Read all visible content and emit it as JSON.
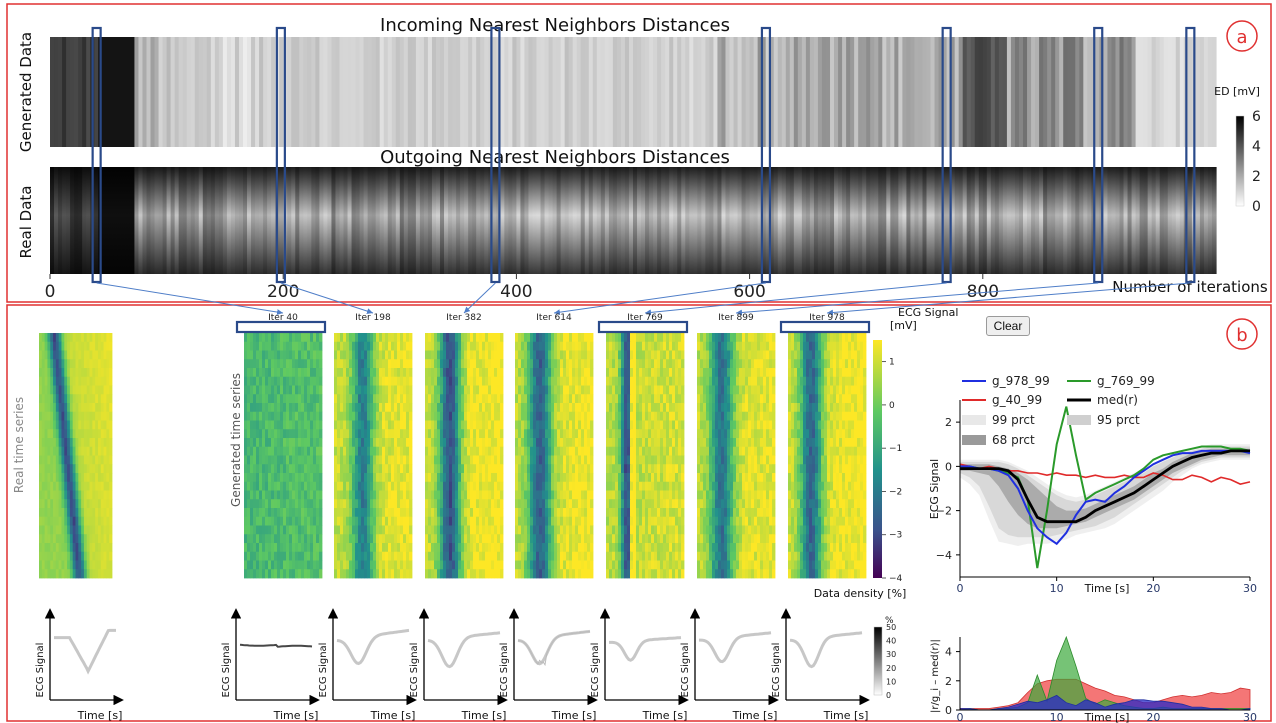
{
  "panel_a": {
    "label": "a",
    "title_top": "Incoming Nearest Neighbors Distances",
    "title_bottom": "Outgoing Nearest Neighbors Distances",
    "ylabel_top": "Generated Data",
    "ylabel_bottom": "Real Data",
    "xlabel": "Number of iterations",
    "colorbar_label": "ED [mV]"
  },
  "panel_b": {
    "label": "b",
    "clear_label": "Clear",
    "real_ylabel": "Real time series",
    "generated_ylabel": "Generated time series",
    "heatmap_colorbar_label": "ECG Signal\n[mV]",
    "density_label": "Data density [%]",
    "density_unit": "%",
    "ecg_signal_label": "ECG Signal",
    "time_label": "Time [s]",
    "deviation_ylabel": "|r/g_i – med(r)|"
  },
  "colors": {
    "frame": "#e03030",
    "highlight_box": "#2a4a8a",
    "arrow": "#4f7ec8",
    "series_978": "#1f2fe0",
    "series_769": "#2a9a2a",
    "series_40": "#e02a2a",
    "median": "#000000"
  },
  "chart_data": [
    {
      "type": "heatmap",
      "name": "incoming-nn-distances",
      "title": "Incoming Nearest Neighbors Distances",
      "ylabel": "Generated Data",
      "xlabel": "Number of iterations",
      "xlim": [
        0,
        1000
      ],
      "xticks": [
        0,
        200,
        400,
        600,
        800
      ],
      "colorbar": {
        "label": "ED [mV]",
        "range": [
          0,
          6
        ],
        "ticks": [
          0,
          2,
          4,
          6
        ]
      },
      "highlighted_iterations": [
        40,
        198,
        382,
        614,
        769,
        899,
        978
      ]
    },
    {
      "type": "heatmap",
      "name": "outgoing-nn-distances",
      "title": "Outgoing Nearest Neighbors Distances",
      "ylabel": "Real Data",
      "xlabel": "Number of iterations",
      "xlim": [
        0,
        1000
      ],
      "xticks": [
        0,
        200,
        400,
        600,
        800
      ]
    },
    {
      "type": "heatmap",
      "name": "time-series-heatmaps",
      "panels": [
        "Iter 40",
        "Iter 198",
        "Iter 382",
        "Iter 614",
        "Iter 769",
        "Iter 899",
        "Iter 978"
      ],
      "highlighted_panels": [
        "Iter 40",
        "Iter 769",
        "Iter 978"
      ],
      "colorbar": {
        "label": "ECG Signal [mV]",
        "range": [
          -4,
          1.5
        ],
        "ticks": [
          1,
          0,
          -1,
          -2,
          -3,
          -4
        ]
      }
    },
    {
      "type": "line",
      "name": "ecg-signal-comparison",
      "xlabel": "Time [s]",
      "ylabel": "ECG Signal",
      "xlim": [
        0,
        30
      ],
      "ylim": [
        -5,
        3
      ],
      "xticks": [
        0,
        10,
        20,
        30
      ],
      "yticks": [
        -4,
        -2,
        0,
        2
      ],
      "legend_placement": "top",
      "x": [
        0,
        1,
        2,
        3,
        4,
        5,
        6,
        7,
        8,
        9,
        10,
        11,
        12,
        13,
        14,
        15,
        16,
        17,
        18,
        19,
        20,
        21,
        22,
        23,
        24,
        25,
        26,
        27,
        28,
        29,
        30
      ],
      "series": [
        {
          "name": "g_978_99",
          "values": [
            0.0,
            0.0,
            -0.1,
            -0.1,
            -0.2,
            -0.4,
            -1.0,
            -2.0,
            -2.8,
            -3.2,
            -3.5,
            -3.0,
            -2.2,
            -1.6,
            -1.5,
            -1.6,
            -1.2,
            -0.9,
            -0.5,
            -0.2,
            0.1,
            0.3,
            0.5,
            0.6,
            0.6,
            0.7,
            0.7,
            0.7,
            0.7,
            0.7,
            0.6
          ]
        },
        {
          "name": "g_769_99",
          "values": [
            -0.1,
            0.0,
            -0.1,
            -0.1,
            -0.2,
            -0.3,
            -0.5,
            -1.5,
            -4.6,
            -2.0,
            1.0,
            2.7,
            0.5,
            -1.5,
            -1.2,
            -1.0,
            -0.8,
            -0.6,
            -0.4,
            -0.1,
            0.3,
            0.5,
            0.6,
            0.7,
            0.8,
            0.9,
            0.9,
            0.9,
            0.8,
            0.8,
            0.7
          ]
        },
        {
          "name": "g_40_99",
          "values": [
            0.1,
            0.0,
            -0.1,
            0.0,
            -0.1,
            -0.2,
            -0.2,
            -0.3,
            -0.3,
            -0.4,
            -0.3,
            -0.4,
            -0.4,
            -0.5,
            -0.4,
            -0.5,
            -0.5,
            -0.4,
            -0.5,
            -0.5,
            -0.3,
            -0.4,
            -0.6,
            -0.6,
            -0.4,
            -0.5,
            -0.7,
            -0.5,
            -0.6,
            -0.8,
            -0.7
          ]
        },
        {
          "name": "med(r)",
          "values": [
            -0.1,
            -0.1,
            -0.1,
            -0.1,
            -0.1,
            -0.2,
            -0.6,
            -1.5,
            -2.3,
            -2.5,
            -2.5,
            -2.5,
            -2.5,
            -2.3,
            -2.0,
            -1.8,
            -1.6,
            -1.4,
            -1.2,
            -0.9,
            -0.6,
            -0.3,
            0.0,
            0.2,
            0.4,
            0.5,
            0.6,
            0.6,
            0.7,
            0.7,
            0.7
          ]
        }
      ],
      "bands": [
        {
          "name": "99 prct",
          "lower": [
            -0.5,
            -0.8,
            -1.3,
            -2.4,
            -3.4,
            -3.5,
            -3.6,
            -3.5,
            -3.5,
            -3.5,
            -3.4,
            -3.3,
            -3.1,
            -3.0,
            -2.9,
            -2.8,
            -2.6,
            -2.3,
            -2.0,
            -1.7,
            -1.4,
            -1.1,
            -0.7,
            -0.4,
            -0.1,
            0.1,
            0.2,
            0.3,
            0.3,
            0.3,
            0.3
          ],
          "upper": [
            0.3,
            0.3,
            0.3,
            0.3,
            0.3,
            0.2,
            0.0,
            -0.2,
            -0.5,
            -0.8,
            -1.1,
            -1.3,
            -1.4,
            -1.3,
            -1.1,
            -0.9,
            -0.7,
            -0.5,
            -0.3,
            -0.1,
            0.1,
            0.3,
            0.5,
            0.7,
            0.8,
            0.9,
            1.0,
            1.0,
            1.0,
            1.0,
            1.0
          ]
        },
        {
          "name": "95 prct",
          "lower": [
            -0.3,
            -0.5,
            -0.9,
            -1.8,
            -2.8,
            -3.1,
            -3.2,
            -3.2,
            -3.2,
            -3.2,
            -3.1,
            -3.0,
            -2.9,
            -2.8,
            -2.7,
            -2.5,
            -2.3,
            -2.0,
            -1.7,
            -1.4,
            -1.1,
            -0.8,
            -0.5,
            -0.2,
            0.0,
            0.2,
            0.3,
            0.4,
            0.4,
            0.4,
            0.4
          ],
          "upper": [
            0.2,
            0.2,
            0.2,
            0.2,
            0.2,
            0.1,
            -0.1,
            -0.4,
            -0.7,
            -1.0,
            -1.3,
            -1.5,
            -1.6,
            -1.5,
            -1.3,
            -1.1,
            -0.9,
            -0.7,
            -0.5,
            -0.3,
            0.0,
            0.2,
            0.4,
            0.6,
            0.7,
            0.8,
            0.9,
            0.9,
            0.9,
            0.9,
            0.9
          ]
        },
        {
          "name": "68 prct",
          "lower": [
            -0.2,
            -0.2,
            -0.3,
            -0.4,
            -0.9,
            -1.6,
            -2.2,
            -2.6,
            -2.8,
            -2.8,
            -2.8,
            -2.7,
            -2.6,
            -2.5,
            -2.3,
            -2.1,
            -1.9,
            -1.7,
            -1.5,
            -1.2,
            -0.9,
            -0.6,
            -0.3,
            -0.1,
            0.1,
            0.3,
            0.4,
            0.5,
            0.5,
            0.5,
            0.5
          ],
          "upper": [
            0.1,
            0.1,
            0.1,
            0.1,
            0.0,
            -0.1,
            -0.3,
            -0.6,
            -1.0,
            -1.4,
            -1.8,
            -2.0,
            -2.0,
            -1.9,
            -1.7,
            -1.5,
            -1.3,
            -1.1,
            -0.9,
            -0.6,
            -0.3,
            -0.1,
            0.2,
            0.4,
            0.6,
            0.7,
            0.8,
            0.8,
            0.8,
            0.8,
            0.8
          ]
        }
      ]
    },
    {
      "type": "area",
      "name": "deviation-from-median",
      "xlabel": "Time [s]",
      "ylabel": "|r/g_i – med(r)|",
      "xlim": [
        0,
        30
      ],
      "ylim": [
        0,
        5
      ],
      "xticks": [
        0,
        10,
        20,
        30
      ],
      "yticks": [
        0,
        2,
        4
      ],
      "x": [
        0,
        1,
        2,
        3,
        4,
        5,
        6,
        7,
        8,
        9,
        10,
        11,
        12,
        13,
        14,
        15,
        16,
        17,
        18,
        19,
        20,
        21,
        22,
        23,
        24,
        25,
        26,
        27,
        28,
        29,
        30
      ],
      "series": [
        {
          "values": [
            0.1,
            0.1,
            0.1,
            0.1,
            0.2,
            0.3,
            0.5,
            1.2,
            1.8,
            2.0,
            2.1,
            2.1,
            2.1,
            1.8,
            1.5,
            1.3,
            1.0,
            0.9,
            0.7,
            0.5,
            0.5,
            0.7,
            0.9,
            1.0,
            0.9,
            1.0,
            1.2,
            1.1,
            1.2,
            1.5,
            1.4
          ]
        },
        {
          "values": [
            0.0,
            0.1,
            0.0,
            0.0,
            0.1,
            0.1,
            0.2,
            0.5,
            2.4,
            0.6,
            3.4,
            5.0,
            3.0,
            0.8,
            0.4,
            0.7,
            0.5,
            0.3,
            0.2,
            0.1,
            0.1,
            0.2,
            0.1,
            0.1,
            0.1,
            0.1,
            0.1,
            0.1,
            0.1,
            0.1,
            0.1
          ]
        },
        {
          "values": [
            0.1,
            0.1,
            0.0,
            0.0,
            0.1,
            0.2,
            0.4,
            0.6,
            0.5,
            0.7,
            1.0,
            0.5,
            0.3,
            0.7,
            0.5,
            0.2,
            0.4,
            0.5,
            0.7,
            0.7,
            0.6,
            0.6,
            0.5,
            0.4,
            0.2,
            0.2,
            0.1,
            0.1,
            0.0,
            0.0,
            0.1
          ]
        }
      ]
    }
  ]
}
